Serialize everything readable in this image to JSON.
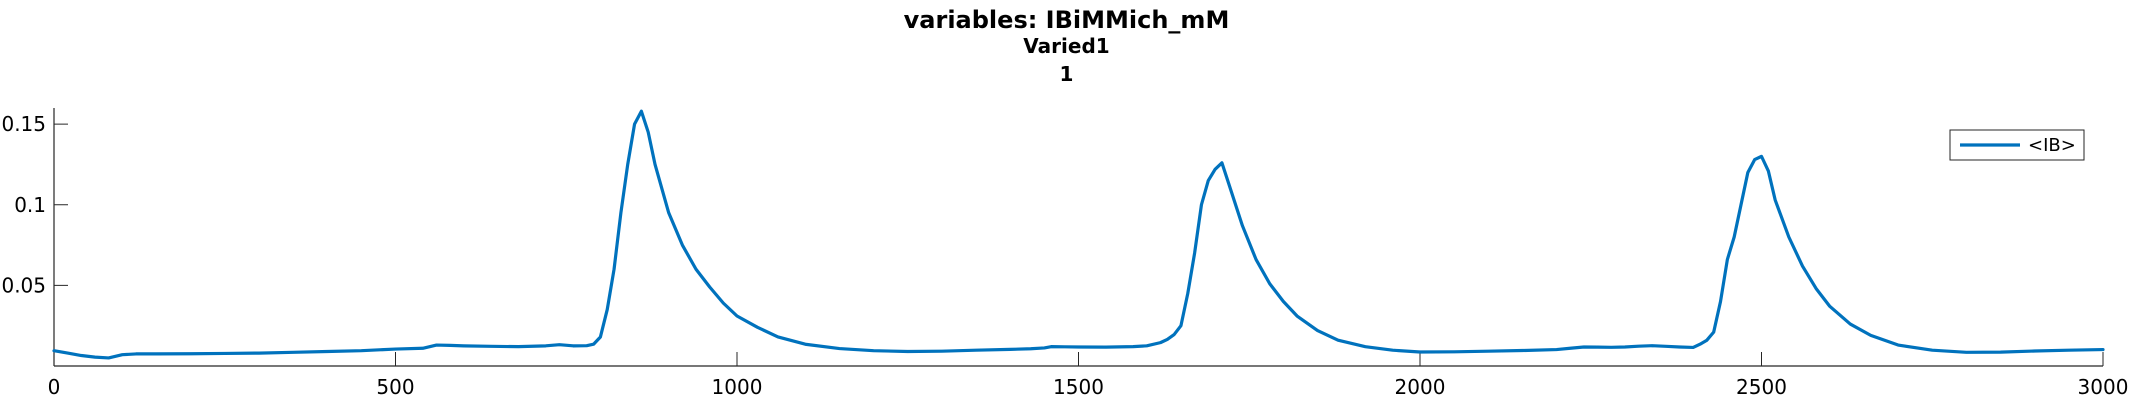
{
  "chart_data": {
    "type": "line",
    "title": "variables: IBiMMich_mM",
    "subtitle": "Varied1",
    "subtitle2": "1",
    "xlabel": "",
    "ylabel": "",
    "xlim": [
      0,
      3000
    ],
    "ylim": [
      0.0,
      0.16
    ],
    "xticks": [
      0,
      500,
      1000,
      1500,
      2000,
      2500,
      3000
    ],
    "xtick_labels": [
      "0",
      "500",
      "1000",
      "1500",
      "2000",
      "2500",
      "3000"
    ],
    "yticks": [
      0.05,
      0.1,
      0.15
    ],
    "ytick_labels": [
      "0.05",
      "0.1",
      "0.15"
    ],
    "grid": false,
    "legend_position": "top-right",
    "line_color": "#0072BD",
    "series": [
      {
        "name": "<IB>",
        "x": [
          0,
          20,
          40,
          60,
          80,
          90,
          100,
          120,
          150,
          200,
          250,
          300,
          350,
          400,
          450,
          500,
          540,
          550,
          560,
          580,
          600,
          640,
          680,
          720,
          740,
          760,
          780,
          790,
          800,
          810,
          820,
          830,
          840,
          850,
          860,
          870,
          880,
          900,
          920,
          940,
          960,
          980,
          1000,
          1030,
          1060,
          1100,
          1150,
          1200,
          1250,
          1300,
          1350,
          1400,
          1430,
          1450,
          1460,
          1480,
          1500,
          1540,
          1580,
          1600,
          1620,
          1630,
          1640,
          1650,
          1660,
          1670,
          1680,
          1690,
          1700,
          1710,
          1720,
          1740,
          1760,
          1780,
          1800,
          1820,
          1850,
          1880,
          1920,
          1960,
          2000,
          2050,
          2100,
          2150,
          2200,
          2220,
          2240,
          2260,
          2280,
          2300,
          2320,
          2340,
          2360,
          2380,
          2400,
          2410,
          2420,
          2430,
          2440,
          2450,
          2460,
          2470,
          2480,
          2490,
          2500,
          2510,
          2520,
          2540,
          2560,
          2580,
          2600,
          2630,
          2660,
          2700,
          2750,
          2800,
          2850,
          2900,
          2950,
          3000
        ],
        "values": [
          0.0095,
          0.008,
          0.0065,
          0.0055,
          0.005,
          0.006,
          0.007,
          0.0075,
          0.0075,
          0.0076,
          0.0078,
          0.008,
          0.0085,
          0.009,
          0.0095,
          0.0105,
          0.011,
          0.012,
          0.013,
          0.0128,
          0.0125,
          0.0122,
          0.012,
          0.0125,
          0.0132,
          0.0125,
          0.0126,
          0.0135,
          0.018,
          0.035,
          0.06,
          0.095,
          0.125,
          0.15,
          0.158,
          0.145,
          0.125,
          0.095,
          0.075,
          0.06,
          0.049,
          0.039,
          0.031,
          0.024,
          0.018,
          0.0135,
          0.0108,
          0.0095,
          0.009,
          0.0092,
          0.0098,
          0.0103,
          0.0107,
          0.0112,
          0.012,
          0.0119,
          0.0118,
          0.0117,
          0.012,
          0.0125,
          0.0145,
          0.0165,
          0.0195,
          0.025,
          0.045,
          0.07,
          0.1,
          0.115,
          0.122,
          0.126,
          0.113,
          0.087,
          0.066,
          0.051,
          0.04,
          0.031,
          0.022,
          0.016,
          0.012,
          0.0098,
          0.0087,
          0.0088,
          0.0092,
          0.0096,
          0.0102,
          0.011,
          0.0118,
          0.0117,
          0.0116,
          0.0118,
          0.0123,
          0.0126,
          0.0122,
          0.0118,
          0.0115,
          0.0135,
          0.016,
          0.021,
          0.04,
          0.066,
          0.08,
          0.1,
          0.12,
          0.128,
          0.13,
          0.121,
          0.103,
          0.08,
          0.062,
          0.048,
          0.037,
          0.026,
          0.019,
          0.013,
          0.0098,
          0.0085,
          0.0086,
          0.0093,
          0.0098,
          0.0102
        ]
      }
    ]
  }
}
